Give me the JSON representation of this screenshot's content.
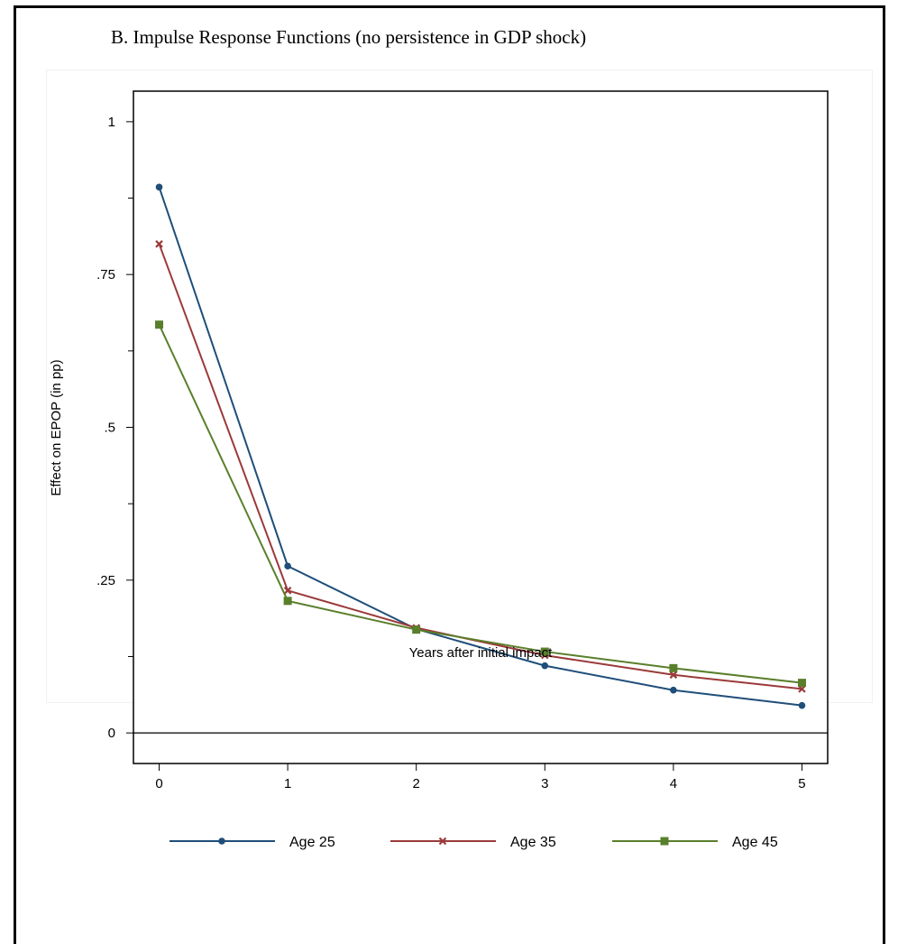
{
  "panel": {
    "title": "B. Impulse Response Functions (no persistence in GDP shock)"
  },
  "chart_data": {
    "type": "line",
    "title": "B. Impulse Response Functions (no persistence in GDP shock)",
    "xlabel": "Years after initial impact",
    "ylabel": "Effect on EPOP (in pp)",
    "x": [
      0,
      1,
      2,
      3,
      4,
      5
    ],
    "xticks": [
      "0",
      "1",
      "2",
      "3",
      "4",
      "5"
    ],
    "yticks": [
      {
        "value": 0,
        "label": "0"
      },
      {
        "value": 0.25,
        "label": ".25"
      },
      {
        "value": 0.5,
        "label": ".5"
      },
      {
        "value": 0.75,
        "label": ".75"
      },
      {
        "value": 1,
        "label": "1"
      }
    ],
    "yminor": [
      0.125,
      0.375,
      0.625,
      0.875
    ],
    "xlim": [
      -0.2,
      5.2
    ],
    "ylim": [
      -0.05,
      1.05
    ],
    "reference_line": 0,
    "legend_position": "bottom",
    "series": [
      {
        "name": "Age 25",
        "color": "#1f4e79",
        "marker": "circle",
        "values": [
          0.893,
          0.273,
          0.17,
          0.11,
          0.07,
          0.045
        ]
      },
      {
        "name": "Age 35",
        "color": "#9b3a3a",
        "marker": "x",
        "values": [
          0.8,
          0.233,
          0.172,
          0.127,
          0.095,
          0.072
        ]
      },
      {
        "name": "Age 45",
        "color": "#5a7f2b",
        "marker": "square",
        "values": [
          0.668,
          0.216,
          0.169,
          0.133,
          0.106,
          0.082
        ]
      }
    ]
  }
}
